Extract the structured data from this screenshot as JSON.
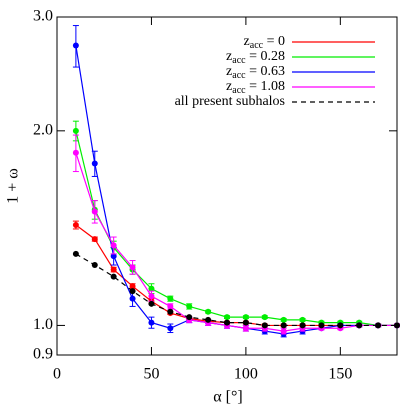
{
  "chart_data": {
    "type": "line",
    "xlabel": "α [°]",
    "ylabel": "1 + ω",
    "x": [
      10,
      20,
      30,
      40,
      50,
      60,
      70,
      80,
      90,
      100,
      110,
      120,
      130,
      140,
      150,
      160,
      170,
      180
    ],
    "xlim": [
      0,
      180
    ],
    "xticks": [
      0,
      50,
      100,
      150
    ],
    "ylim": [
      0.9,
      3.0
    ],
    "ylog": true,
    "yticks": [
      0.9,
      {
        "value": 1,
        "label": "1.0"
      },
      {
        "value": 2,
        "label": "2.0"
      },
      {
        "value": 3,
        "label": "3.0"
      }
    ],
    "legend": "top-right",
    "series": [
      {
        "name": "zacc = 0",
        "color": "#ff0000",
        "values": [
          1.43,
          1.36,
          1.22,
          1.15,
          1.09,
          1.045,
          1.025,
          1.015,
          1.01,
          1.01,
          1.0,
          1.0,
          1.0,
          1.0,
          1.0,
          1.0,
          1.0,
          1.0
        ],
        "errors": [
          0.02,
          0.01,
          0.01,
          0.01,
          0.01,
          0.005,
          0.005,
          0.005,
          0.005,
          0.005,
          0.005,
          0.005,
          0.005,
          0.005,
          0.005,
          0.005,
          0.005,
          0.005
        ]
      },
      {
        "name": "zacc = 0.28",
        "color": "#00ee00",
        "values": [
          2.0,
          1.51,
          1.32,
          1.22,
          1.14,
          1.1,
          1.07,
          1.05,
          1.03,
          1.03,
          1.03,
          1.02,
          1.02,
          1.01,
          1.01,
          1.01,
          1.0,
          1.0
        ],
        "errors": [
          0.07,
          0.05,
          0.03,
          0.02,
          0.02,
          0.01,
          0.01,
          0.005,
          0.005,
          0.005,
          0.005,
          0.005,
          0.005,
          0.005,
          0.005,
          0.005,
          0.005,
          0.005
        ]
      },
      {
        "name": "zacc = 0.63",
        "color": "#0000ff",
        "values": [
          2.71,
          1.78,
          1.28,
          1.1,
          1.01,
          0.99,
          1.02,
          1.01,
          1.0,
          0.99,
          0.98,
          0.97,
          0.98,
          0.99,
          1.0,
          1.0,
          1.0,
          1.0
        ],
        "errors": [
          0.2,
          0.08,
          0.04,
          0.03,
          0.02,
          0.015,
          0.01,
          0.01,
          0.01,
          0.01,
          0.01,
          0.01,
          0.01,
          0.005,
          0.005,
          0.005,
          0.005,
          0.005
        ]
      },
      {
        "name": "zacc = 1.08",
        "color": "#ff00ff",
        "values": [
          1.85,
          1.5,
          1.33,
          1.23,
          1.11,
          1.07,
          1.02,
          1.01,
          1.0,
          0.99,
          0.99,
          0.98,
          0.99,
          0.99,
          0.99,
          1.0,
          1.0,
          1.0
        ],
        "errors": [
          0.12,
          0.06,
          0.04,
          0.03,
          0.02,
          0.01,
          0.01,
          0.01,
          0.01,
          0.01,
          0.01,
          0.01,
          0.01,
          0.005,
          0.005,
          0.005,
          0.005,
          0.005
        ]
      },
      {
        "name": "all present subhalos",
        "color": "#000000",
        "dashed": true,
        "values": [
          1.29,
          1.24,
          1.19,
          1.13,
          1.08,
          1.05,
          1.03,
          1.02,
          1.01,
          1.01,
          1.0,
          1.0,
          1.0,
          1.0,
          1.0,
          1.0,
          1.0,
          1.0
        ]
      }
    ]
  }
}
